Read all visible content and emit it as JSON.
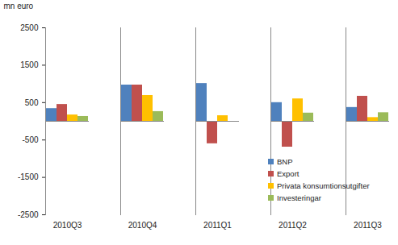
{
  "chart_data": {
    "type": "bar",
    "y_label": "mn euro",
    "categories": [
      "2010Q3",
      "2010Q4",
      "2011Q1",
      "2011Q2",
      "2011Q3"
    ],
    "series": [
      {
        "name": "BNP",
        "color": "#4f81bd",
        "values": [
          340,
          970,
          1010,
          500,
          370
        ]
      },
      {
        "name": "Export",
        "color": "#c0504d",
        "values": [
          450,
          970,
          -600,
          -690,
          670
        ]
      },
      {
        "name": "Privata konsumtionsutgifter",
        "color": "#ffc000",
        "values": [
          170,
          690,
          150,
          600,
          100
        ]
      },
      {
        "name": "Investeringar",
        "color": "#9bbb59",
        "values": [
          130,
          260,
          0,
          220,
          230
        ]
      }
    ],
    "ylim": [
      -2500,
      2500
    ],
    "yticks": [
      -2500,
      -1500,
      -500,
      500,
      1500,
      2500
    ],
    "grid": false,
    "legend": "right"
  }
}
